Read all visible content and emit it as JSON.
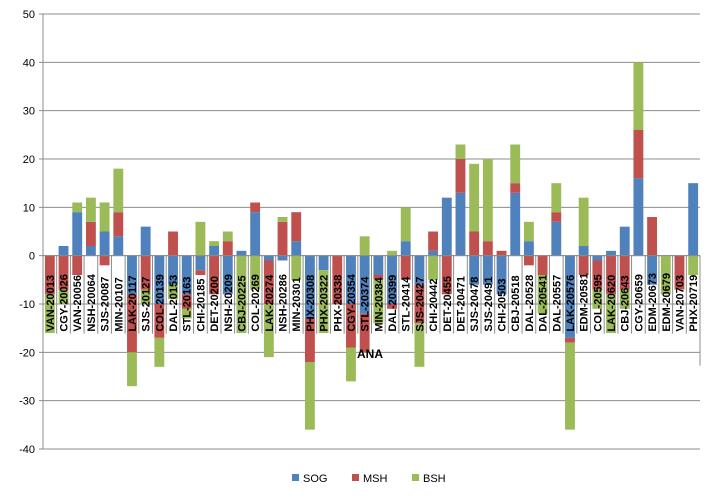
{
  "chart_data": {
    "type": "bar",
    "stacked": true,
    "title": "",
    "xlabel": "",
    "ylabel": "",
    "ylim": [
      -40,
      50
    ],
    "yticks": [
      50,
      40,
      30,
      20,
      10,
      0,
      -10,
      -20,
      -30,
      -40
    ],
    "grid": true,
    "legend_position": "bottom",
    "annotation": "ANA",
    "categories": [
      "VAN-20013",
      "CGY-20026",
      "VAN-20056",
      "NSH-20064",
      "SJS-20087",
      "MIN-20107",
      "LAK-20117",
      "SJS-20127",
      "COL-20139",
      "DAL-20153",
      "STL-20163",
      "CHI-20185",
      "DET-20200",
      "NSH-20209",
      "CBJ-20225",
      "COL-20269",
      "LAK-20274",
      "NSH-20286",
      "MIN-20301",
      "PHX-20308",
      "PHX-20322",
      "PHX-20338",
      "CGY-20354",
      "STL-20374",
      "MIN-20384",
      "DAL-20399",
      "STL-20414",
      "SJS-20427",
      "CHI-20442",
      "DET-20455",
      "DET-20471",
      "SJS-20478",
      "SJS-20491",
      "CHI-20503",
      "CBJ-20518",
      "DAL-20528",
      "DAL-20541",
      "DAL-20557",
      "LAK-20576",
      "EDM-20581",
      "COL-20595",
      "LAK-20620",
      "CBJ-20643",
      "CGY-20659",
      "EDM-20673",
      "EDM-20679",
      "VAN-20703",
      "PHX-20719"
    ],
    "series": [
      {
        "name": "SOG",
        "color": "#4F81BD",
        "pos": [
          0,
          2,
          9,
          2,
          5,
          4,
          0,
          6,
          0,
          0,
          0,
          0,
          2,
          0,
          1,
          9,
          0,
          0,
          3,
          0,
          0,
          0,
          0,
          0,
          0,
          0,
          3,
          0,
          1,
          12,
          13,
          0,
          0,
          0,
          13,
          3,
          0,
          7,
          0,
          2,
          0,
          1,
          6,
          16,
          0,
          0,
          0,
          15
        ],
        "neg": [
          0,
          0,
          0,
          0,
          0,
          0,
          -8,
          0,
          -10,
          -6,
          -8,
          -3,
          0,
          -8,
          0,
          0,
          -1,
          -1,
          0,
          -13,
          -3,
          0,
          -10,
          -12,
          -4,
          -10,
          0,
          -6,
          0,
          0,
          0,
          -6,
          -6,
          -8,
          0,
          0,
          0,
          0,
          -17,
          0,
          -1,
          0,
          0,
          0,
          -6,
          0,
          0,
          0
        ]
      },
      {
        "name": "MSH",
        "color": "#C0504D",
        "pos": [
          0,
          0,
          0,
          5,
          0,
          5,
          0,
          0,
          0,
          5,
          0,
          0,
          0,
          3,
          0,
          2,
          0,
          7,
          6,
          0,
          0,
          0,
          0,
          0,
          0,
          0,
          0,
          0,
          4,
          0,
          7,
          5,
          3,
          1,
          2,
          0,
          0,
          2,
          0,
          0,
          0,
          0,
          0,
          10,
          8,
          0,
          0,
          0
        ],
        "neg": [
          -8,
          -7,
          -4,
          0,
          -2,
          0,
          -12,
          -7,
          -7,
          0,
          -3,
          -1,
          -8,
          0,
          0,
          0,
          -9,
          0,
          0,
          -9,
          0,
          -10,
          -9,
          -8,
          -1,
          -1,
          -5,
          -8,
          0,
          -8,
          0,
          0,
          0,
          0,
          0,
          -2,
          -4,
          0,
          -1,
          -4,
          -6,
          -8,
          -7,
          0,
          0,
          0,
          -7,
          0
        ]
      },
      {
        "name": "BSH",
        "color": "#9BBB59",
        "pos": [
          0,
          0,
          2,
          5,
          6,
          9,
          0,
          0,
          0,
          0,
          0,
          7,
          1,
          2,
          0,
          0,
          0,
          1,
          0,
          0,
          0,
          0,
          0,
          4,
          0,
          1,
          7,
          0,
          0,
          0,
          3,
          14,
          17,
          0,
          8,
          4,
          0,
          6,
          0,
          10,
          0,
          0,
          0,
          14,
          0,
          0,
          0,
          0
        ],
        "neg": [
          -8,
          -3,
          0,
          0,
          0,
          0,
          -7,
          -3,
          -6,
          -3,
          -2,
          0,
          0,
          0,
          -16,
          -7,
          -11,
          0,
          -5,
          -14,
          -13,
          0,
          -7,
          0,
          -9,
          0,
          0,
          -9,
          -5,
          0,
          0,
          0,
          0,
          0,
          0,
          0,
          -8,
          0,
          -18,
          0,
          -4,
          -8,
          -4,
          0,
          0,
          -8,
          0,
          -4
        ]
      }
    ]
  }
}
